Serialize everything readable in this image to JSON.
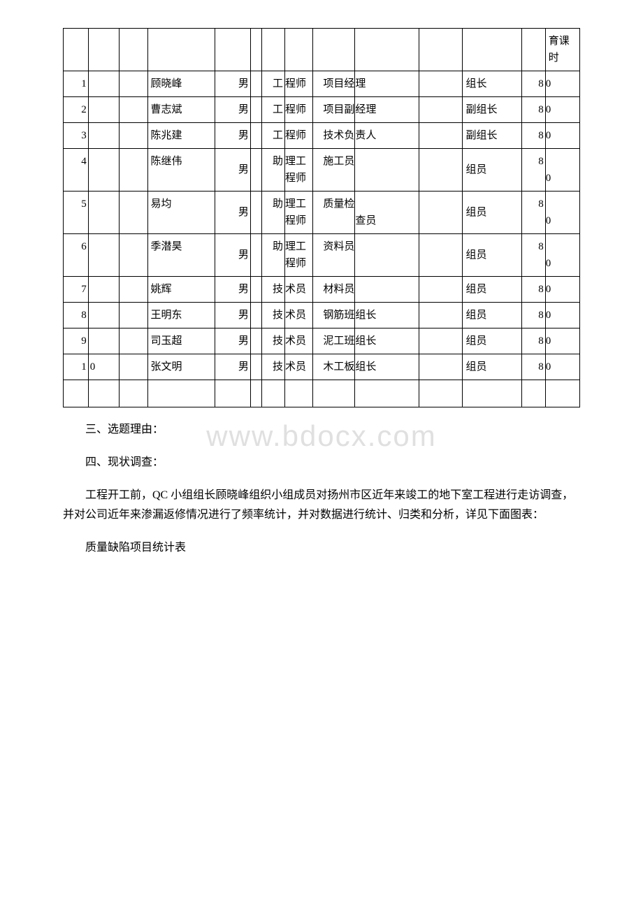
{
  "watermark": "www.bdocx.com",
  "table": {
    "header_tail": "育课时",
    "rows": [
      {
        "idx": "1",
        "name": "顾晓峰",
        "gender": "男",
        "title_a": "工",
        "title_b": "程师",
        "job_a": "项目经",
        "job_b": "理",
        "role": "组长",
        "edu_a": "8",
        "edu_b": "0"
      },
      {
        "idx": "2",
        "name": "曹志斌",
        "gender": "男",
        "title_a": "工",
        "title_b": "程师",
        "job_a": "项目副",
        "job_b": "经理",
        "role": "副组长",
        "edu_a": "8",
        "edu_b": "0"
      },
      {
        "idx": "3",
        "name": "陈兆建",
        "gender": "男",
        "title_a": "工",
        "title_b": "程师",
        "job_a": "技术负",
        "job_b": "责人",
        "role": "副组长",
        "edu_a": "8",
        "edu_b": "0"
      },
      {
        "idx": "4",
        "name": "陈继伟",
        "gender": "男",
        "title_a": "助",
        "title_b": "理工程师",
        "job_a": "施工员",
        "job_b": "",
        "role": "组员",
        "edu_a": "8",
        "edu_b": "0"
      },
      {
        "idx": "5",
        "name": "易均",
        "gender": "男",
        "title_a": "助",
        "title_b": "理工程师",
        "job_a": "质量检",
        "job_b": "查员",
        "role": "组员",
        "edu_a": "8",
        "edu_b": "0"
      },
      {
        "idx": "6",
        "name": "季潜昊",
        "gender": "男",
        "title_a": "助",
        "title_b": "理工程师",
        "job_a": "资料员",
        "job_b": "",
        "role": "组员",
        "edu_a": "8",
        "edu_b": "0"
      },
      {
        "idx": "7",
        "name": "姚辉",
        "gender": "男",
        "title_a": "技",
        "title_b": "术员",
        "job_a": "材料员",
        "job_b": "",
        "role": "组员",
        "edu_a": "8",
        "edu_b": "0"
      },
      {
        "idx": "8",
        "name": "王明东",
        "gender": "男",
        "title_a": "技",
        "title_b": "术员",
        "job_a": "钢筋班",
        "job_b": "组长",
        "role": "组员",
        "edu_a": "8",
        "edu_b": "0"
      },
      {
        "idx": "9",
        "name": "司玉超",
        "gender": "男",
        "title_a": "技",
        "title_b": "术员",
        "job_a": "泥工班",
        "job_b": "组长",
        "role": "组员",
        "edu_a": "8",
        "edu_b": "0"
      },
      {
        "idx_a": "1",
        "idx_b": "0",
        "name": "张文明",
        "gender": "男",
        "title_a": "技",
        "title_b": "术员",
        "job_a": "木工板",
        "job_b": "组长",
        "role": "组员",
        "edu_a": "8",
        "edu_b": "0"
      }
    ]
  },
  "paragraphs": {
    "p1": "三、选题理由：",
    "p2": "四、现状调查：",
    "p3": "工程开工前，QC 小组组长顾晓峰组织小组成员对扬州市区近年来竣工的地下室工程进行走访调查，并对公司近年来渗漏返修情况进行了频率统计，并对数据进行统计、归类和分析，详见下面图表：",
    "p4": "质量缺陷项目统计表"
  }
}
